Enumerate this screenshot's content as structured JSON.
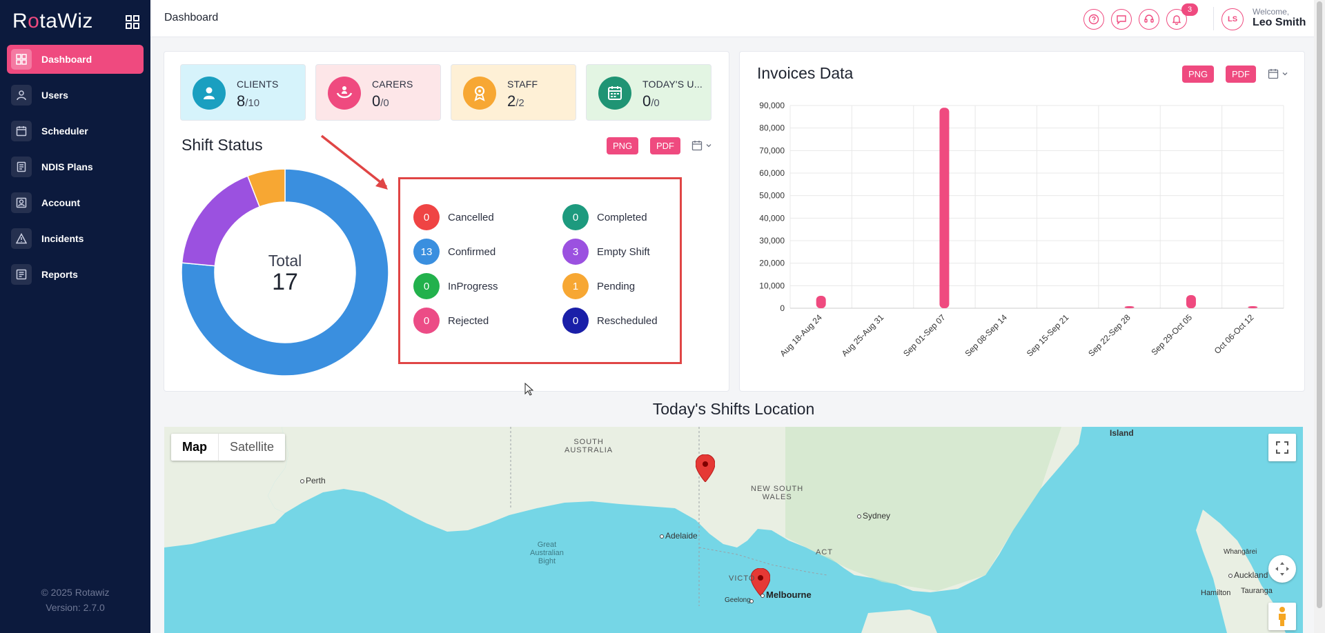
{
  "sidebar": {
    "logo_prefix": "R",
    "logo_accent": "o",
    "logo_suffix": "taWiz",
    "items": [
      {
        "label": "Dashboard",
        "icon": "dashboard-icon",
        "active": true
      },
      {
        "label": "Users",
        "icon": "user-icon"
      },
      {
        "label": "Scheduler",
        "icon": "calendar-icon"
      },
      {
        "label": "NDIS Plans",
        "icon": "document-icon"
      },
      {
        "label": "Account",
        "icon": "account-icon"
      },
      {
        "label": "Incidents",
        "icon": "warning-icon"
      },
      {
        "label": "Reports",
        "icon": "report-icon"
      }
    ],
    "copyright": "© 2025 Rotawiz",
    "version": "Version: 2.7.0"
  },
  "header": {
    "title": "Dashboard",
    "notification_count": "3",
    "user_initials": "LS",
    "welcome": "Welcome,",
    "username": "Leo Smith"
  },
  "stats": [
    {
      "label": "CLIENTS",
      "value": "8",
      "total": "/10",
      "color": "#1a9fc0",
      "bg": "#d6f3fb",
      "icon": "person-icon"
    },
    {
      "label": "CARERS",
      "value": "0",
      "total": "/0",
      "color": "#ef4a7f",
      "bg": "#fde6e8",
      "icon": "carer-icon"
    },
    {
      "label": "STAFF",
      "value": "2",
      "total": "/2",
      "color": "#f7a733",
      "bg": "#fef0d6",
      "icon": "staff-icon"
    },
    {
      "label": "TODAY'S U...",
      "value": "0",
      "total": "/0",
      "color": "#1f9474",
      "bg": "#e3f5e3",
      "icon": "calendar-icon"
    }
  ],
  "shift_status": {
    "title": "Shift Status",
    "png": "PNG",
    "pdf": "PDF",
    "total_label": "Total",
    "total_value": "17",
    "legend": [
      {
        "label": "Cancelled",
        "value": "0",
        "color": "#ef4444"
      },
      {
        "label": "Completed",
        "value": "0",
        "color": "#1d9a7e"
      },
      {
        "label": "Confirmed",
        "value": "13",
        "color": "#3a8fdf"
      },
      {
        "label": "Empty Shift",
        "value": "3",
        "color": "#9b51e0"
      },
      {
        "label": "InProgress",
        "value": "0",
        "color": "#22b14c"
      },
      {
        "label": "Pending",
        "value": "1",
        "color": "#f7a733"
      },
      {
        "label": "Rejected",
        "value": "0",
        "color": "#ec4c86"
      },
      {
        "label": "Rescheduled",
        "value": "0",
        "color": "#1a1fa8"
      }
    ]
  },
  "invoices": {
    "title": "Invoices Data",
    "png": "PNG",
    "pdf": "PDF"
  },
  "chart_data": [
    {
      "type": "pie",
      "title": "Shift Status",
      "labels": [
        "Confirmed",
        "Empty Shift",
        "Pending"
      ],
      "values": [
        13,
        3,
        1
      ],
      "colors": [
        "#3a8fdf",
        "#9b51e0",
        "#f7a733"
      ]
    },
    {
      "type": "bar",
      "title": "Invoices Data",
      "categories": [
        "Aug 18-Aug 24",
        "Aug 25-Aug 31",
        "Sep 01-Sep 07",
        "Sep 08-Sep 14",
        "Sep 15-Sep 21",
        "Sep 22-Sep 28",
        "Sep 29-Oct 05",
        "Oct 06-Oct 12"
      ],
      "values": [
        5500,
        0,
        89000,
        0,
        0,
        300,
        5800,
        400
      ],
      "ylim": [
        0,
        90000
      ],
      "yticks": [
        "0",
        "10,000",
        "20,000",
        "30,000",
        "40,000",
        "50,000",
        "60,000",
        "70,000",
        "80,000",
        "90,000"
      ],
      "color": "#ef4a7f",
      "grid": true
    }
  ],
  "map": {
    "title": "Today's Shifts Location",
    "tab_map": "Map",
    "tab_satellite": "Satellite",
    "labels": {
      "perth": "Perth",
      "adelaide": "Adelaide",
      "sydney": "Sydney",
      "melbourne": "Melbourne",
      "geelong": "Geelong",
      "auckland": "Auckland",
      "hamilton": "Hamilton",
      "tauranga": "Tauranga",
      "whangarei": "Whangārei",
      "island": "Island",
      "sa_line1": "SOUTH",
      "sa_line2": "AUSTRALIA",
      "nsw_line1": "NEW SOUTH",
      "nsw_line2": "WALES",
      "act": "ACT",
      "vic": "VICTO",
      "bight_1": "Great",
      "bight_2": "Australian",
      "bight_3": "Bight"
    }
  }
}
